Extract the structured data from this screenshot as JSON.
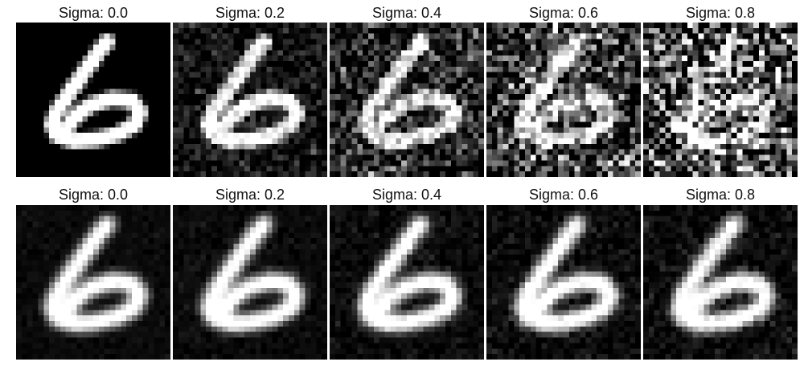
{
  "rows": [
    {
      "kind": "noisy",
      "panels": [
        {
          "title": "Sigma: 0.0",
          "sigma": 0.0
        },
        {
          "title": "Sigma: 0.2",
          "sigma": 0.2
        },
        {
          "title": "Sigma: 0.4",
          "sigma": 0.4
        },
        {
          "title": "Sigma: 0.6",
          "sigma": 0.6
        },
        {
          "title": "Sigma: 0.8",
          "sigma": 0.8
        }
      ]
    },
    {
      "kind": "denoised",
      "panels": [
        {
          "title": "Sigma: 0.0",
          "sigma": 0.0
        },
        {
          "title": "Sigma: 0.2",
          "sigma": 0.2
        },
        {
          "title": "Sigma: 0.4",
          "sigma": 0.4
        },
        {
          "title": "Sigma: 0.6",
          "sigma": 0.6
        },
        {
          "title": "Sigma: 0.8",
          "sigma": 0.8
        }
      ]
    }
  ]
}
